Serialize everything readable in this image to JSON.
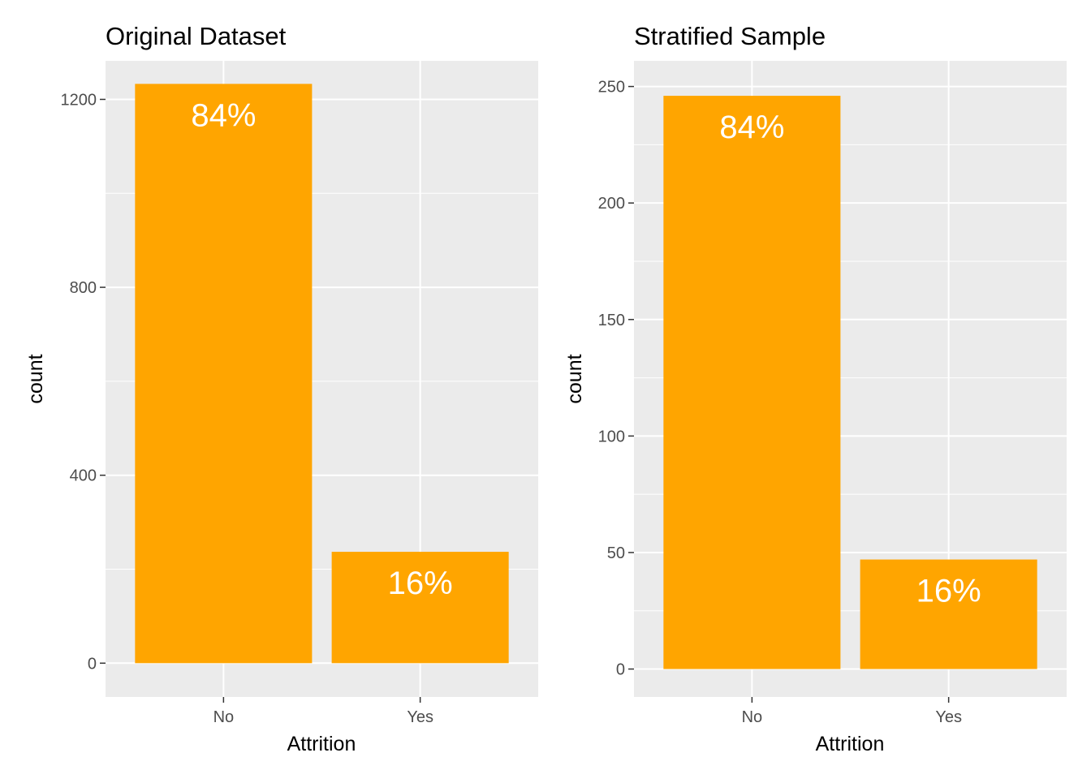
{
  "colors": {
    "bar": "#FFA500",
    "panel_background": "#EBEBEB",
    "grid": "#FFFFFF",
    "bar_label": "#FFFFFF",
    "tick_label": "#4D4D4D",
    "tick_mark": "#333333"
  },
  "chart_data": [
    {
      "type": "bar",
      "title": "Original Dataset",
      "xlabel": "Attrition",
      "ylabel": "count",
      "categories": [
        "No",
        "Yes"
      ],
      "values": [
        1233,
        237
      ],
      "bar_labels": [
        "84%",
        "16%"
      ],
      "yticks": [
        0,
        400,
        800,
        1200
      ],
      "ylim": [
        -72,
        1282
      ],
      "grid": true,
      "legend": "none"
    },
    {
      "type": "bar",
      "title": "Stratified Sample",
      "xlabel": "Attrition",
      "ylabel": "count",
      "categories": [
        "No",
        "Yes"
      ],
      "values": [
        246,
        47
      ],
      "bar_labels": [
        "84%",
        "16%"
      ],
      "yticks": [
        0,
        50,
        100,
        150,
        200,
        250
      ],
      "ylim": [
        -12,
        261
      ],
      "grid": true,
      "legend": "none"
    }
  ]
}
